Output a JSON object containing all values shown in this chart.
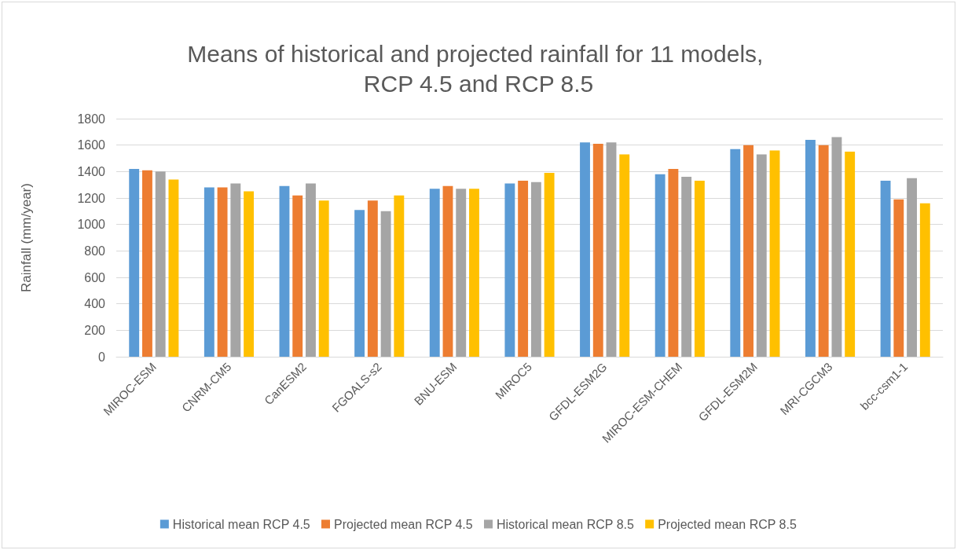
{
  "chart_data": {
    "type": "bar",
    "title": "Means of historical and projected rainfall for 11 models, RCP 4.5 and RCP 8.5",
    "ylabel": "Rainfall (mm/year)",
    "categories": [
      "MIROC-ESM",
      "CNRM-CM5",
      "CanESM2",
      "FGOALS-s2",
      "BNU-ESM",
      "MIROC5",
      "GFDL-ESM2G",
      "MIROC-ESM-CHEM",
      "GFDL-ESM2M",
      "MRI-CGCM3",
      "bcc-csm1-1"
    ],
    "series": [
      {
        "name": "Historical mean RCP 4.5",
        "color": "#5b9bd5",
        "values": [
          1420,
          1280,
          1290,
          1110,
          1270,
          1310,
          1620,
          1380,
          1570,
          1640,
          1330
        ]
      },
      {
        "name": "Projected mean RCP 4.5",
        "color": "#ed7d31",
        "values": [
          1410,
          1280,
          1220,
          1180,
          1290,
          1330,
          1610,
          1420,
          1600,
          1600,
          1190
        ]
      },
      {
        "name": "Historical mean RCP 8.5",
        "color": "#a5a5a5",
        "values": [
          1400,
          1310,
          1310,
          1100,
          1270,
          1320,
          1620,
          1360,
          1530,
          1660,
          1350
        ]
      },
      {
        "name": "Projected mean RCP 8.5",
        "color": "#ffc000",
        "values": [
          1340,
          1250,
          1180,
          1220,
          1270,
          1390,
          1530,
          1330,
          1560,
          1550,
          1160
        ]
      }
    ],
    "ylim": [
      0,
      1800
    ],
    "yticks": [
      0,
      200,
      400,
      600,
      800,
      1000,
      1200,
      1400,
      1600,
      1800
    ],
    "grid": "y",
    "legend": "bottom"
  }
}
